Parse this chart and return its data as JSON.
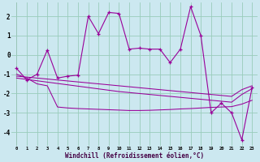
{
  "xlabel": "Windchill (Refroidissement éolien,°C)",
  "background_color": "#cce8f0",
  "grid_color": "#99ccbb",
  "line_color": "#990099",
  "x_values": [
    0,
    1,
    2,
    3,
    4,
    5,
    6,
    7,
    8,
    9,
    10,
    11,
    12,
    13,
    14,
    15,
    16,
    17,
    18,
    19,
    20,
    21,
    22,
    23
  ],
  "main_y": [
    -0.7,
    -1.3,
    -1.0,
    0.25,
    -1.2,
    -1.1,
    -1.05,
    2.0,
    1.1,
    2.2,
    2.15,
    0.3,
    0.35,
    0.3,
    0.3,
    -0.4,
    0.3,
    2.5,
    1.0,
    -3.0,
    -2.5,
    -3.0,
    -4.4,
    -1.7
  ],
  "trend1_y": [
    -1.1,
    -1.15,
    -1.2,
    -1.25,
    -1.3,
    -1.35,
    -1.4,
    -1.45,
    -1.5,
    -1.55,
    -1.6,
    -1.65,
    -1.7,
    -1.75,
    -1.8,
    -1.85,
    -1.9,
    -1.95,
    -2.0,
    -2.05,
    -2.1,
    -2.15,
    -1.8,
    -1.6
  ],
  "trend2_y": [
    -1.2,
    -1.27,
    -1.34,
    -1.41,
    -1.48,
    -1.55,
    -1.62,
    -1.69,
    -1.76,
    -1.83,
    -1.9,
    -1.95,
    -2.0,
    -2.05,
    -2.1,
    -2.15,
    -2.2,
    -2.25,
    -2.3,
    -2.35,
    -2.4,
    -2.45,
    -2.05,
    -1.75
  ],
  "trend3_y": [
    -1.0,
    -1.2,
    -1.5,
    -1.6,
    -2.7,
    -2.75,
    -2.78,
    -2.8,
    -2.82,
    -2.84,
    -2.86,
    -2.88,
    -2.88,
    -2.87,
    -2.85,
    -2.83,
    -2.8,
    -2.78,
    -2.75,
    -2.72,
    -2.7,
    -2.68,
    -2.55,
    -2.35
  ],
  "ylim": [
    -4.7,
    2.7
  ],
  "yticks": [
    -4,
    -3,
    -2,
    -1,
    0,
    1,
    2
  ]
}
